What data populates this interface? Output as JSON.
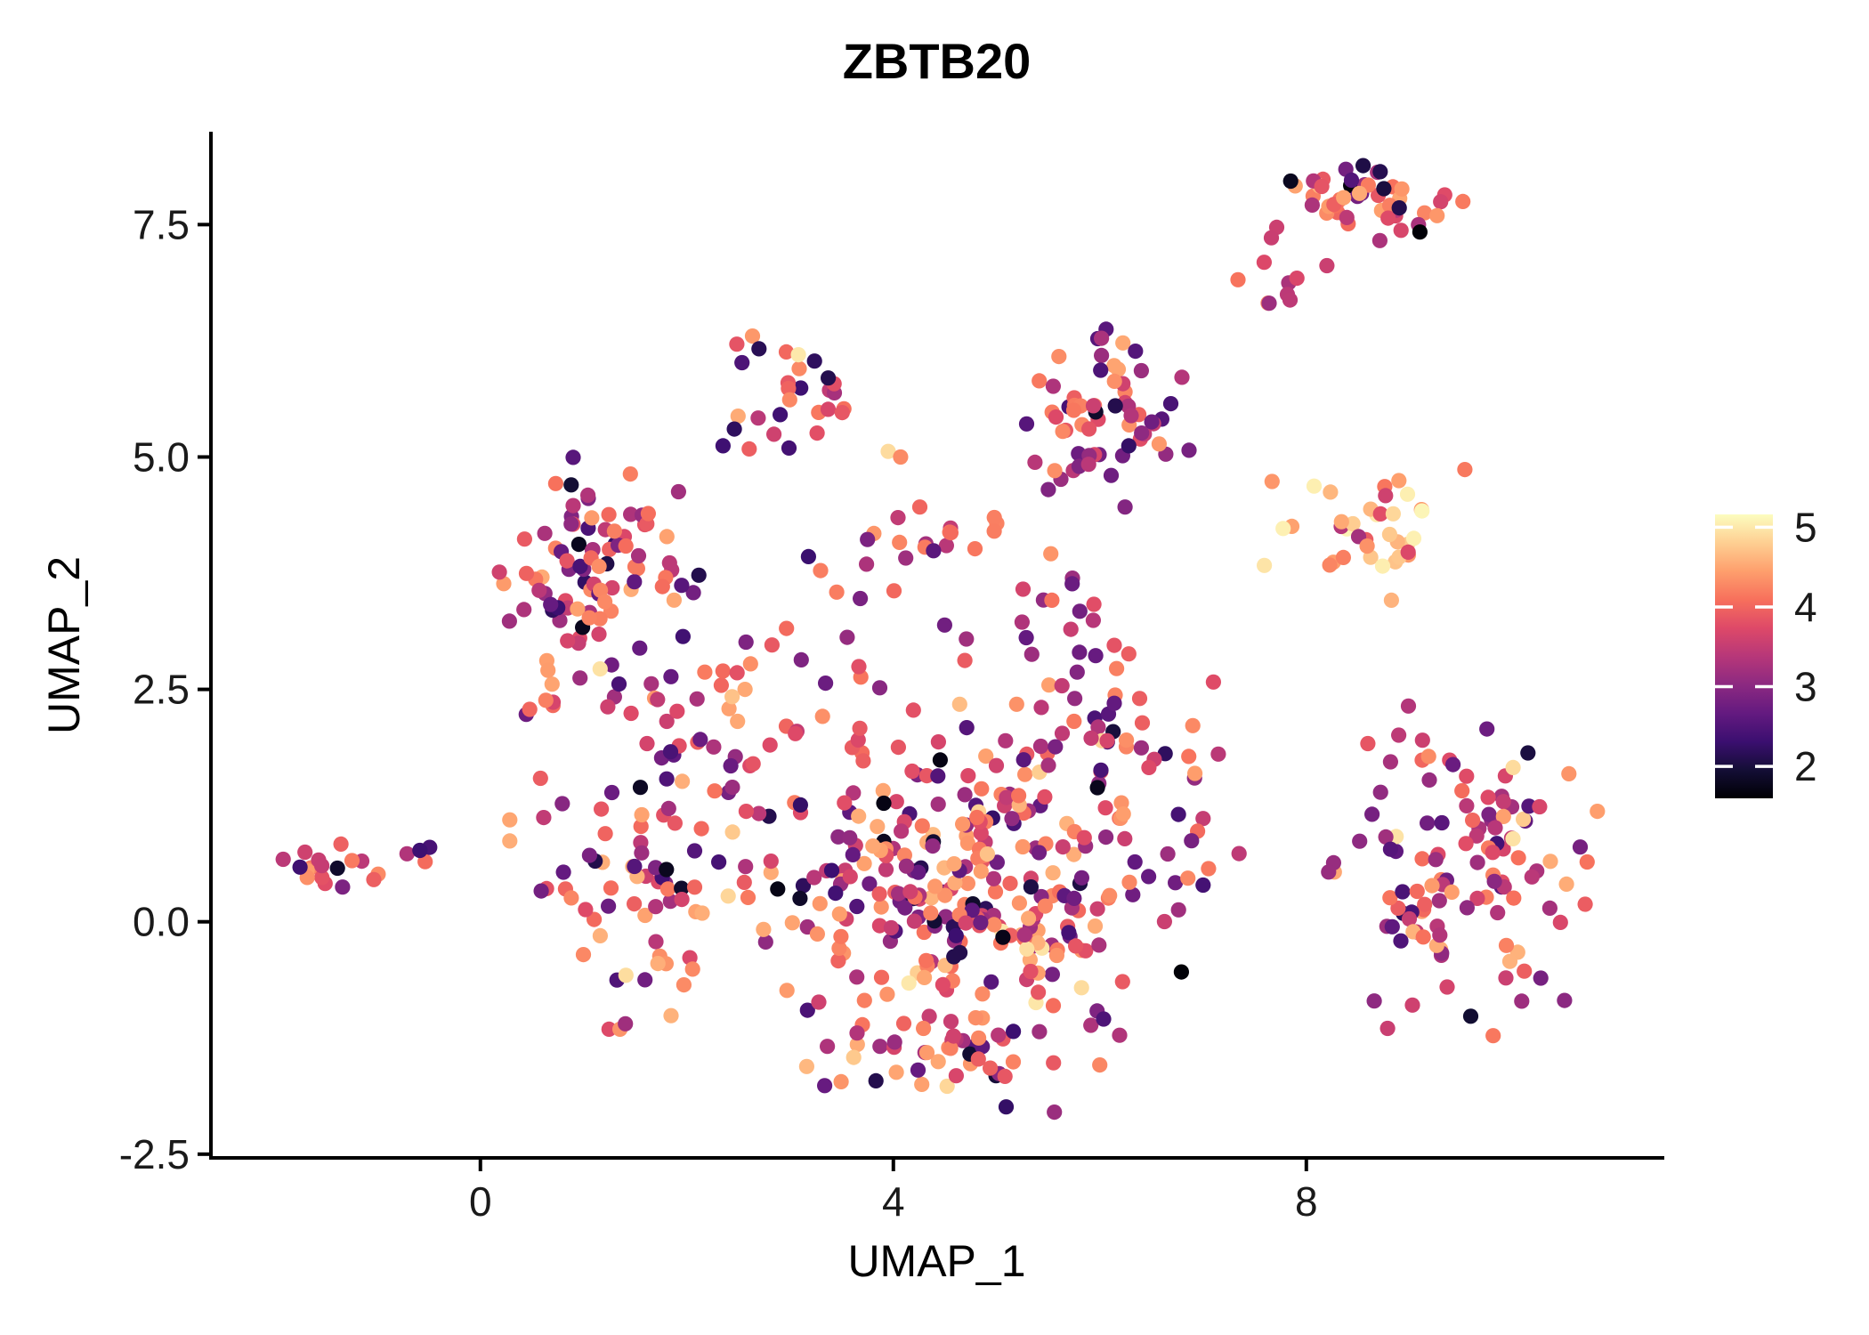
{
  "chart_data": {
    "type": "scatter",
    "title": "ZBTB20",
    "xlabel": "UMAP_1",
    "ylabel": "UMAP_2",
    "xlim": [
      -2.61,
      11.45
    ],
    "ylim": [
      -2.54,
      8.48
    ],
    "grid": false,
    "x_ticks": [
      {
        "value": 0,
        "label": "0"
      },
      {
        "value": 4,
        "label": "4"
      },
      {
        "value": 8,
        "label": "8"
      }
    ],
    "y_ticks": [
      {
        "value": 7.5,
        "label": "7.5"
      },
      {
        "value": 5.0,
        "label": "5.0"
      },
      {
        "value": 2.5,
        "label": "2.5"
      },
      {
        "value": 0.0,
        "label": "0.0"
      },
      {
        "value": -2.5,
        "label": "-2.5"
      }
    ],
    "colorbar": {
      "position": "right",
      "vmin": 1.6,
      "vmax": 5.16,
      "ticks": [
        {
          "value": 5,
          "label": "5"
        },
        {
          "value": 4,
          "label": "4"
        },
        {
          "value": 3,
          "label": "3"
        },
        {
          "value": 2,
          "label": "2"
        }
      ],
      "palette": "magma",
      "anchors": [
        "#000004",
        "#140e36",
        "#3b0f70",
        "#641a80",
        "#8c2981",
        "#b73779",
        "#de4968",
        "#f7705c",
        "#fe9f6d",
        "#fecf92",
        "#fcfdbf"
      ],
      "tick_mark_color": "#ffffff"
    },
    "marker": {
      "radius": 8.6
    },
    "axis_color": "#000000",
    "tick_label_color": "#1a1a1a",
    "seed": 42,
    "clusters": [
      {
        "name": "far-left",
        "cx": -1.45,
        "cy": 0.61,
        "sx": 0.2,
        "sy": 0.11,
        "n": 17,
        "vmix": [
          [
            0.45,
            3.9,
            4.5
          ],
          [
            0.3,
            3.4,
            4.0
          ],
          [
            0.15,
            2.8,
            3.4
          ],
          [
            0.1,
            1.8,
            2.4
          ]
        ]
      },
      {
        "name": "far-left-stragglers",
        "cx": -0.55,
        "cy": 0.68,
        "sx": 0.15,
        "sy": 0.13,
        "n": 4,
        "vmix": [
          [
            0.5,
            3.8,
            4.4
          ],
          [
            0.3,
            2.8,
            3.4
          ],
          [
            0.2,
            2.2,
            2.8
          ]
        ]
      },
      {
        "name": "left",
        "cx": 1.15,
        "cy": 3.8,
        "sx": 0.42,
        "sy": 0.52,
        "n": 85,
        "vmix": [
          [
            0.27,
            2.2,
            2.9
          ],
          [
            0.28,
            2.9,
            3.5
          ],
          [
            0.28,
            3.6,
            4.3
          ],
          [
            0.12,
            4.2,
            4.6
          ],
          [
            0.05,
            1.7,
            2.15
          ]
        ]
      },
      {
        "name": "left-lower",
        "cx": 1.05,
        "cy": 2.7,
        "sx": 0.4,
        "sy": 0.35,
        "n": 16,
        "vmix": [
          [
            0.3,
            2.4,
            3.0
          ],
          [
            0.3,
            3.0,
            3.6
          ],
          [
            0.3,
            3.6,
            4.3
          ],
          [
            0.1,
            4.3,
            4.6
          ]
        ]
      },
      {
        "name": "top-small",
        "cx": 2.9,
        "cy": 5.68,
        "sx": 0.27,
        "sy": 0.27,
        "n": 26,
        "vmix": [
          [
            0.4,
            3.7,
            4.3
          ],
          [
            0.25,
            3.2,
            3.8
          ],
          [
            0.15,
            4.3,
            4.7
          ],
          [
            0.12,
            2.2,
            2.9
          ],
          [
            0.08,
            1.95,
            2.4
          ]
        ]
      },
      {
        "name": "band",
        "cx": 4.33,
        "cy": 4.2,
        "sx": 0.42,
        "sy": 0.15,
        "n": 16,
        "vmix": [
          [
            0.35,
            3.7,
            4.4
          ],
          [
            0.3,
            2.8,
            3.5
          ],
          [
            0.25,
            3.9,
            4.5
          ],
          [
            0.1,
            2.3,
            2.9
          ]
        ]
      },
      {
        "name": "center-top",
        "cx": 6.0,
        "cy": 5.4,
        "sx": 0.38,
        "sy": 0.44,
        "n": 62,
        "vmix": [
          [
            0.34,
            2.4,
            3.1
          ],
          [
            0.28,
            3.1,
            3.7
          ],
          [
            0.2,
            3.7,
            4.3
          ],
          [
            0.13,
            4.2,
            4.6
          ],
          [
            0.05,
            1.8,
            2.3
          ]
        ]
      },
      {
        "name": "neck",
        "cx": 5.7,
        "cy": 3.2,
        "sx": 0.35,
        "sy": 0.45,
        "n": 16,
        "vmix": [
          [
            0.3,
            2.6,
            3.2
          ],
          [
            0.3,
            3.2,
            3.8
          ],
          [
            0.3,
            3.8,
            4.4
          ],
          [
            0.1,
            4.4,
            4.7
          ]
        ]
      },
      {
        "name": "between-top",
        "cx": 7.6,
        "cy": 7.1,
        "sx": 0.22,
        "sy": 0.45,
        "n": 6,
        "vmix": [
          [
            0.5,
            3.5,
            4.2
          ],
          [
            0.3,
            3.0,
            3.6
          ],
          [
            0.2,
            4.2,
            4.5
          ]
        ]
      },
      {
        "name": "top-right",
        "cx": 8.55,
        "cy": 7.72,
        "sx": 0.42,
        "sy": 0.18,
        "n": 46,
        "vmix": [
          [
            0.34,
            3.6,
            4.2
          ],
          [
            0.28,
            3.1,
            3.7
          ],
          [
            0.2,
            4.2,
            4.6
          ],
          [
            0.12,
            2.5,
            3.1
          ],
          [
            0.06,
            1.65,
            2.2
          ]
        ]
      },
      {
        "name": "top-right-below",
        "cx": 8.0,
        "cy": 6.95,
        "sx": 0.2,
        "sy": 0.2,
        "n": 5,
        "vmix": [
          [
            0.5,
            3.4,
            4.0
          ],
          [
            0.3,
            2.9,
            3.4
          ],
          [
            0.2,
            4.0,
            4.4
          ]
        ]
      },
      {
        "name": "right-mid-bright",
        "cx": 8.5,
        "cy": 4.2,
        "sx": 0.45,
        "sy": 0.4,
        "n": 36,
        "vmix": [
          [
            0.35,
            4.3,
            4.8
          ],
          [
            0.25,
            4.8,
            5.15
          ],
          [
            0.28,
            3.9,
            4.4
          ],
          [
            0.12,
            3.2,
            3.9
          ]
        ]
      },
      {
        "name": "right-bottom",
        "cx": 9.55,
        "cy": 0.5,
        "sx": 0.58,
        "sy": 0.75,
        "n": 112,
        "vmix": [
          [
            0.3,
            3.0,
            3.6
          ],
          [
            0.3,
            3.6,
            4.2
          ],
          [
            0.2,
            4.2,
            4.6
          ],
          [
            0.12,
            2.4,
            3.0
          ],
          [
            0.05,
            1.9,
            2.4
          ],
          [
            0.03,
            4.6,
            5.0
          ]
        ]
      },
      {
        "name": "right-bottom-top-edge",
        "cx": 8.9,
        "cy": 2.0,
        "sx": 0.35,
        "sy": 0.18,
        "n": 7,
        "vmix": [
          [
            0.4,
            3.4,
            4.0
          ],
          [
            0.3,
            2.9,
            3.5
          ],
          [
            0.3,
            4.0,
            4.5
          ]
        ]
      },
      {
        "name": "central-main",
        "cx": 4.7,
        "cy": 0.5,
        "sx": 1.0,
        "sy": 0.8,
        "n": 295,
        "vmix": [
          [
            0.28,
            3.6,
            4.2
          ],
          [
            0.24,
            4.2,
            4.6
          ],
          [
            0.22,
            3.0,
            3.6
          ],
          [
            0.15,
            2.4,
            3.0
          ],
          [
            0.06,
            4.6,
            5.0
          ],
          [
            0.05,
            1.7,
            2.4
          ]
        ]
      },
      {
        "name": "central-left-arm",
        "cx": 1.55,
        "cy": 0.5,
        "sx": 0.55,
        "sy": 0.72,
        "n": 80,
        "vmix": [
          [
            0.28,
            3.6,
            4.2
          ],
          [
            0.24,
            4.2,
            4.6
          ],
          [
            0.22,
            3.0,
            3.6
          ],
          [
            0.15,
            2.4,
            3.0
          ],
          [
            0.06,
            4.6,
            5.0
          ],
          [
            0.05,
            1.7,
            2.4
          ]
        ]
      },
      {
        "name": "central-bottom",
        "cx": 4.7,
        "cy": -1.45,
        "sx": 0.7,
        "sy": 0.26,
        "n": 45,
        "vmix": [
          [
            0.28,
            3.6,
            4.2
          ],
          [
            0.24,
            4.2,
            4.6
          ],
          [
            0.22,
            3.0,
            3.6
          ],
          [
            0.15,
            2.4,
            3.0
          ],
          [
            0.06,
            4.6,
            5.0
          ],
          [
            0.05,
            1.7,
            2.4
          ]
        ]
      },
      {
        "name": "central-top-ridge",
        "cx": 5.95,
        "cy": 2.1,
        "sx": 0.5,
        "sy": 0.38,
        "n": 38,
        "vmix": [
          [
            0.28,
            3.6,
            4.2
          ],
          [
            0.24,
            4.2,
            4.6
          ],
          [
            0.22,
            3.0,
            3.6
          ],
          [
            0.15,
            2.4,
            3.0
          ],
          [
            0.06,
            4.6,
            5.0
          ],
          [
            0.05,
            1.7,
            2.4
          ]
        ]
      },
      {
        "name": "bridge-left",
        "cx": 2.2,
        "cy": 2.0,
        "sx": 0.45,
        "sy": 0.45,
        "n": 28,
        "vmix": [
          [
            0.28,
            3.6,
            4.2
          ],
          [
            0.24,
            4.2,
            4.6
          ],
          [
            0.22,
            3.0,
            3.6
          ],
          [
            0.15,
            2.4,
            3.0
          ],
          [
            0.06,
            4.6,
            5.0
          ],
          [
            0.05,
            1.7,
            2.4
          ]
        ]
      },
      {
        "name": "mid-sparse",
        "cx": 3.3,
        "cy": 3.15,
        "sx": 0.7,
        "sy": 0.45,
        "n": 20,
        "vmix": [
          [
            0.35,
            3.7,
            4.4
          ],
          [
            0.3,
            2.8,
            3.5
          ],
          [
            0.25,
            3.9,
            4.5
          ],
          [
            0.1,
            2.3,
            2.9
          ]
        ]
      },
      {
        "name": "right-gap",
        "cx": 6.95,
        "cy": 0.9,
        "sx": 0.22,
        "sy": 0.5,
        "n": 6,
        "vmix": [
          [
            0.4,
            3.2,
            3.8
          ],
          [
            0.3,
            3.8,
            4.3
          ],
          [
            0.3,
            2.6,
            3.2
          ]
        ]
      }
    ],
    "accent_points": [
      {
        "x": 6.79,
        "y": -0.54,
        "v": 1.62
      },
      {
        "x": 3.08,
        "y": 6.1,
        "v": 5.0
      },
      {
        "x": 3.95,
        "y": 5.06,
        "v": 4.9
      },
      {
        "x": 4.07,
        "y": 5.0,
        "v": 4.3
      },
      {
        "x": 1.16,
        "y": 2.72,
        "v": 4.95
      },
      {
        "x": 0.88,
        "y": 4.7,
        "v": 1.95
      },
      {
        "x": 9.1,
        "y": 7.42,
        "v": 1.62
      },
      {
        "x": 8.9,
        "y": 7.68,
        "v": 2.1
      },
      {
        "x": 6.15,
        "y": 5.55,
        "v": 2.1
      },
      {
        "x": 6.28,
        "y": 5.12,
        "v": 2.25
      },
      {
        "x": 4.15,
        "y": -0.66,
        "v": 5.0
      },
      {
        "x": 4.3,
        "y": -0.6,
        "v": 4.5
      },
      {
        "x": 8.98,
        "y": 4.6,
        "v": 5.05
      },
      {
        "x": 9.12,
        "y": 4.42,
        "v": 5.1
      },
      {
        "x": 2.46,
        "y": 5.3,
        "v": 2.2
      },
      {
        "x": 2.35,
        "y": 5.12,
        "v": 2.35
      }
    ]
  }
}
